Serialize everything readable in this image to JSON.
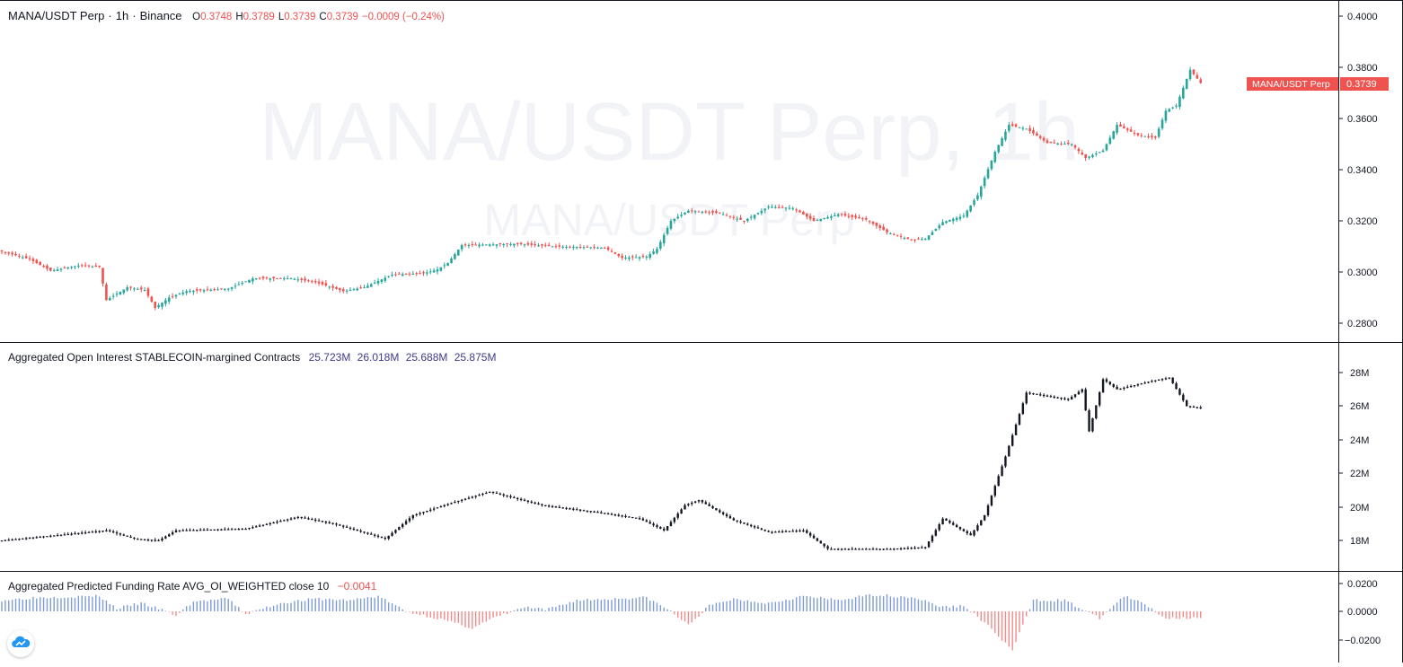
{
  "colors": {
    "up": "#26A69A",
    "down": "#EF5350",
    "oi": "#131722",
    "fund_pos": "#7E9BD6",
    "fund_neg": "#F28B8B",
    "accent": "#EF5350",
    "oi_values": "#3F3A8C"
  },
  "main": {
    "symbol": "MANA/USDT Perp",
    "interval": "1h",
    "exchange": "Binance",
    "sep": "·",
    "ohlc": {
      "o_label": "O",
      "o": "0.3748",
      "h_label": "H",
      "h": "0.3789",
      "l_label": "L",
      "l": "0.3739",
      "c_label": "C",
      "c": "0.3739",
      "change": "−0.0009 (−0.24%)"
    },
    "watermark_big": "MANA/USDT Perp, 1h",
    "watermark_small": "MANA/USDT Perp",
    "price_tag_label": "MANA/USDT Perp",
    "price_tag_value": "0.3739"
  },
  "oi_pane": {
    "title": "Aggregated Open Interest STABLECOIN-margined Contracts",
    "values": [
      "25.723M",
      "26.018M",
      "25.688M",
      "25.875M"
    ]
  },
  "funding_pane": {
    "title": "Aggregated Predicted Funding Rate AVG_OI_WEIGHTED close 10",
    "value": "−0.0041"
  },
  "axes": {
    "price_ticks": [
      "0.4000",
      "0.3800",
      "0.3600",
      "0.3400",
      "0.3200",
      "0.3000",
      "0.2800"
    ],
    "oi_ticks": [
      "28M",
      "26M",
      "24M",
      "22M",
      "20M",
      "18M"
    ],
    "funding_ticks": [
      "0.0200",
      "0.0000",
      "−0.0200"
    ]
  },
  "chart_data": [
    {
      "type": "candlestick",
      "title": "MANA/USDT Perp · 1h · Binance",
      "ylim": [
        0.275,
        0.405
      ],
      "grid": false,
      "keypoints": [
        [
          0,
          0.308
        ],
        [
          8,
          0.305
        ],
        [
          14,
          0.3005
        ],
        [
          22,
          0.3025
        ],
        [
          28,
          0.302
        ],
        [
          30,
          0.289
        ],
        [
          36,
          0.294
        ],
        [
          41,
          0.293
        ],
        [
          44,
          0.286
        ],
        [
          48,
          0.29
        ],
        [
          53,
          0.2925
        ],
        [
          65,
          0.2935
        ],
        [
          72,
          0.2975
        ],
        [
          83,
          0.2975
        ],
        [
          90,
          0.296
        ],
        [
          98,
          0.2925
        ],
        [
          104,
          0.294
        ],
        [
          112,
          0.299
        ],
        [
          121,
          0.2995
        ],
        [
          125,
          0.301
        ],
        [
          128,
          0.3035
        ],
        [
          132,
          0.3105
        ],
        [
          148,
          0.311
        ],
        [
          158,
          0.31
        ],
        [
          173,
          0.3095
        ],
        [
          178,
          0.3055
        ],
        [
          185,
          0.306
        ],
        [
          188,
          0.309
        ],
        [
          192,
          0.32
        ],
        [
          197,
          0.324
        ],
        [
          206,
          0.323
        ],
        [
          213,
          0.32
        ],
        [
          220,
          0.3255
        ],
        [
          227,
          0.325
        ],
        [
          233,
          0.32
        ],
        [
          240,
          0.3225
        ],
        [
          248,
          0.3205
        ],
        [
          254,
          0.3155
        ],
        [
          261,
          0.3125
        ],
        [
          265,
          0.313
        ],
        [
          270,
          0.3195
        ],
        [
          276,
          0.322
        ],
        [
          280,
          0.33
        ],
        [
          285,
          0.347
        ],
        [
          289,
          0.3575
        ],
        [
          294,
          0.356
        ],
        [
          300,
          0.3505
        ],
        [
          307,
          0.35
        ],
        [
          311,
          0.3445
        ],
        [
          316,
          0.3475
        ],
        [
          320,
          0.3575
        ],
        [
          326,
          0.3535
        ],
        [
          331,
          0.3525
        ],
        [
          334,
          0.363
        ],
        [
          337,
          0.365
        ],
        [
          341,
          0.379
        ],
        [
          344,
          0.3739
        ]
      ]
    },
    {
      "type": "line",
      "title": "Aggregated Open Interest STABLECOIN-margined Contracts",
      "ylim": [
        16.5,
        29.0
      ],
      "keypoints": [
        [
          0,
          18.0
        ],
        [
          30,
          18.6
        ],
        [
          38,
          18.1
        ],
        [
          45,
          18.0
        ],
        [
          50,
          18.6
        ],
        [
          70,
          18.7
        ],
        [
          85,
          19.4
        ],
        [
          95,
          19.0
        ],
        [
          110,
          18.1
        ],
        [
          118,
          19.5
        ],
        [
          130,
          20.3
        ],
        [
          140,
          20.9
        ],
        [
          155,
          20.1
        ],
        [
          170,
          19.7
        ],
        [
          183,
          19.3
        ],
        [
          190,
          18.6
        ],
        [
          196,
          20.1
        ],
        [
          200,
          20.4
        ],
        [
          210,
          19.2
        ],
        [
          220,
          18.5
        ],
        [
          230,
          18.6
        ],
        [
          237,
          17.5
        ],
        [
          255,
          17.5
        ],
        [
          265,
          17.6
        ],
        [
          270,
          19.3
        ],
        [
          278,
          18.3
        ],
        [
          282,
          19.5
        ],
        [
          288,
          23.0
        ],
        [
          294,
          26.8
        ],
        [
          306,
          26.4
        ],
        [
          310,
          27.0
        ],
        [
          312,
          24.5
        ],
        [
          316,
          27.6
        ],
        [
          320,
          27.0
        ],
        [
          330,
          27.5
        ],
        [
          335,
          27.7
        ],
        [
          340,
          26.0
        ],
        [
          344,
          25.9
        ]
      ]
    },
    {
      "type": "bar",
      "title": "Aggregated Predicted Funding Rate AVG_OI_WEIGHTED close 10",
      "ylim": [
        -0.029,
        0.022
      ],
      "keypoints": [
        [
          0,
          0.008
        ],
        [
          10,
          0.01
        ],
        [
          28,
          0.011
        ],
        [
          33,
          0.002
        ],
        [
          40,
          0.006
        ],
        [
          46,
          0.001
        ],
        [
          50,
          -0.003
        ],
        [
          55,
          0.007
        ],
        [
          65,
          0.009
        ],
        [
          70,
          -0.002
        ],
        [
          80,
          0.006
        ],
        [
          90,
          0.009
        ],
        [
          100,
          0.008
        ],
        [
          108,
          0.011
        ],
        [
          116,
          0.0
        ],
        [
          125,
          -0.005
        ],
        [
          135,
          -0.012
        ],
        [
          142,
          -0.004
        ],
        [
          150,
          0.003
        ],
        [
          156,
          0.001
        ],
        [
          165,
          0.008
        ],
        [
          175,
          0.009
        ],
        [
          185,
          0.01
        ],
        [
          192,
          0.0
        ],
        [
          197,
          -0.01
        ],
        [
          203,
          0.004
        ],
        [
          210,
          0.009
        ],
        [
          220,
          0.006
        ],
        [
          230,
          0.011
        ],
        [
          240,
          0.008
        ],
        [
          250,
          0.012
        ],
        [
          262,
          0.01
        ],
        [
          270,
          0.003
        ],
        [
          276,
          0.004
        ],
        [
          282,
          -0.008
        ],
        [
          290,
          -0.028
        ],
        [
          296,
          0.008
        ],
        [
          305,
          0.008
        ],
        [
          315,
          -0.005
        ],
        [
          322,
          0.011
        ],
        [
          328,
          0.005
        ],
        [
          334,
          -0.005
        ],
        [
          344,
          -0.0041
        ]
      ]
    }
  ]
}
